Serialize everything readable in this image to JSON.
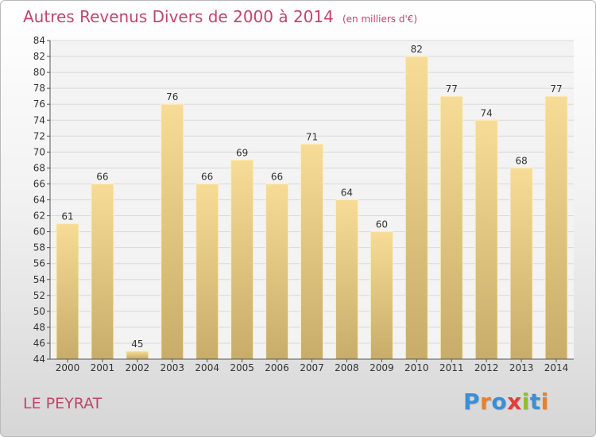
{
  "header": {
    "title": "Autres Revenus Divers de 2000 à 2014",
    "subtitle": "(en milliers d'€)"
  },
  "footer": {
    "commune": "LE PEYRAT",
    "logo_text": "Proxiti"
  },
  "colors": {
    "title": "#c0466a",
    "bar_top": "#f6dc96",
    "bar_bottom": "#c7ad69",
    "logo": [
      "#3a8fd6",
      "#e8812b",
      "#3a8fd6",
      "#e23c3c",
      "#8fbf2f",
      "#3a8fd6",
      "#e8812b"
    ]
  },
  "chart_data": {
    "type": "bar",
    "title": "Autres Revenus Divers de 2000 à 2014",
    "subtitle": "(en milliers d'€)",
    "categories": [
      "2000",
      "2001",
      "2002",
      "2003",
      "2004",
      "2005",
      "2006",
      "2007",
      "2008",
      "2009",
      "2010",
      "2011",
      "2012",
      "2013",
      "2014"
    ],
    "values": [
      61,
      66,
      45,
      76,
      66,
      69,
      66,
      71,
      64,
      60,
      82,
      77,
      74,
      68,
      77
    ],
    "ylim": [
      44,
      84
    ],
    "yticks": [
      44,
      46,
      48,
      50,
      52,
      54,
      56,
      58,
      60,
      62,
      64,
      66,
      68,
      70,
      72,
      74,
      76,
      78,
      80,
      82,
      84
    ],
    "grid": true,
    "legend": "none",
    "xlabel": "",
    "ylabel": ""
  }
}
